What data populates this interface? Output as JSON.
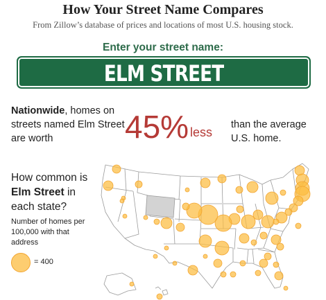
{
  "header": {
    "title": "How Your Street Name Compares",
    "subtitle": "From Zillow’s database of prices and locations of most U.S. housing stock."
  },
  "search": {
    "prompt": "Enter your street name:",
    "street_name": "ELM STREET"
  },
  "nationwide": {
    "lead_bold": "Nationwide",
    "lead_text": ", homes on streets named Elm Street are worth",
    "percent": "45%",
    "direction": "less",
    "tail_text": "than the average U.S. home."
  },
  "map_section": {
    "question_pre": "How common is",
    "question_street": "Elm Street",
    "question_post": "in each state?",
    "legend_label": "Number of homes per 100,000 with that address",
    "legend_value": "= 400",
    "highlight_state": "Wyoming"
  },
  "colors": {
    "sign_green": "#1e6b44",
    "prompt_green": "#2d6b4a",
    "accent_red": "#b53a36",
    "bubble_fill": "#fcbc40",
    "bubble_stroke": "#f2a531"
  }
}
